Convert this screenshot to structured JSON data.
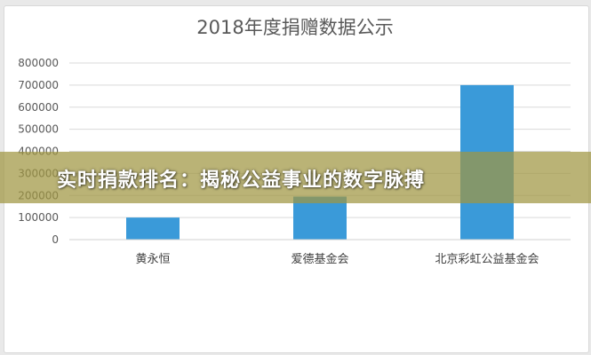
{
  "chart_data": {
    "type": "bar",
    "title": "2018年度捐赠数据公示",
    "categories": [
      "黄永恒",
      "爱德基金会",
      "北京彩虹公益基金会"
    ],
    "values": [
      100000,
      195000,
      700000
    ],
    "yticks": [
      "800000",
      "700000",
      "600000",
      "500000",
      "400000",
      "300000",
      "200000",
      "100000",
      "0"
    ],
    "ylim": [
      0,
      800000
    ],
    "grid": true,
    "bar_color": "#3a9ad9"
  },
  "overlay": {
    "banner_text": "实时捐款排名：揭秘公益事业的数字脉搏"
  }
}
